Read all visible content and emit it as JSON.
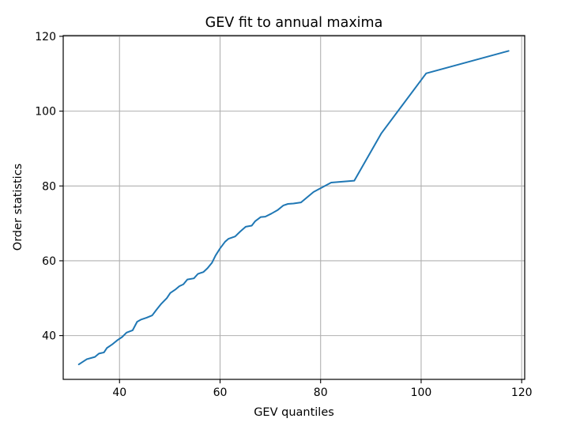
{
  "chart_data": {
    "type": "line",
    "title": "GEV fit to annual maxima",
    "xlabel": "GEV quantiles",
    "ylabel": "Order statistics",
    "xlim": [
      28.8,
      120.6
    ],
    "ylim": [
      28.3,
      120.2
    ],
    "xticks": [
      40,
      60,
      80,
      100,
      120
    ],
    "yticks": [
      40,
      60,
      80,
      100,
      120
    ],
    "grid": true,
    "legend": "none",
    "colors": {
      "line": "#1f77b4",
      "grid": "#b0b0b0",
      "axes": "#000000"
    },
    "series": [
      {
        "x": [
          31.9,
          33.5,
          35.1,
          35.9,
          36.9,
          37.5,
          38.5,
          39.6,
          40.5,
          41.4,
          42.6,
          43.5,
          44.3,
          45.4,
          46.5,
          47.4,
          48.3,
          49.4,
          50.1,
          51.2,
          51.9,
          52.7,
          53.5,
          54.8,
          55.6,
          56.7,
          57.5,
          58.4,
          59.1,
          60.0,
          61.0,
          61.7,
          63.0,
          64.0,
          65.1,
          66.3,
          67.0,
          68.1,
          69.0,
          70.2,
          71.5,
          72.6,
          73.5,
          74.6,
          76.1,
          78.6,
          82.1,
          86.7,
          92.1,
          101.0,
          117.4
        ],
        "y": [
          32.3,
          33.7,
          34.3,
          35.2,
          35.5,
          36.7,
          37.6,
          38.8,
          39.6,
          40.8,
          41.4,
          43.7,
          44.3,
          44.8,
          45.4,
          47.0,
          48.5,
          50.0,
          51.4,
          52.4,
          53.2,
          53.7,
          55.0,
          55.3,
          56.5,
          57.0,
          58.0,
          59.5,
          61.4,
          63.3,
          65.1,
          65.9,
          66.5,
          67.8,
          69.1,
          69.4,
          70.6,
          71.7,
          71.8,
          72.6,
          73.6,
          74.8,
          75.2,
          75.3,
          75.6,
          78.4,
          80.9,
          81.4,
          94.1,
          110.1,
          116.1
        ]
      }
    ]
  }
}
